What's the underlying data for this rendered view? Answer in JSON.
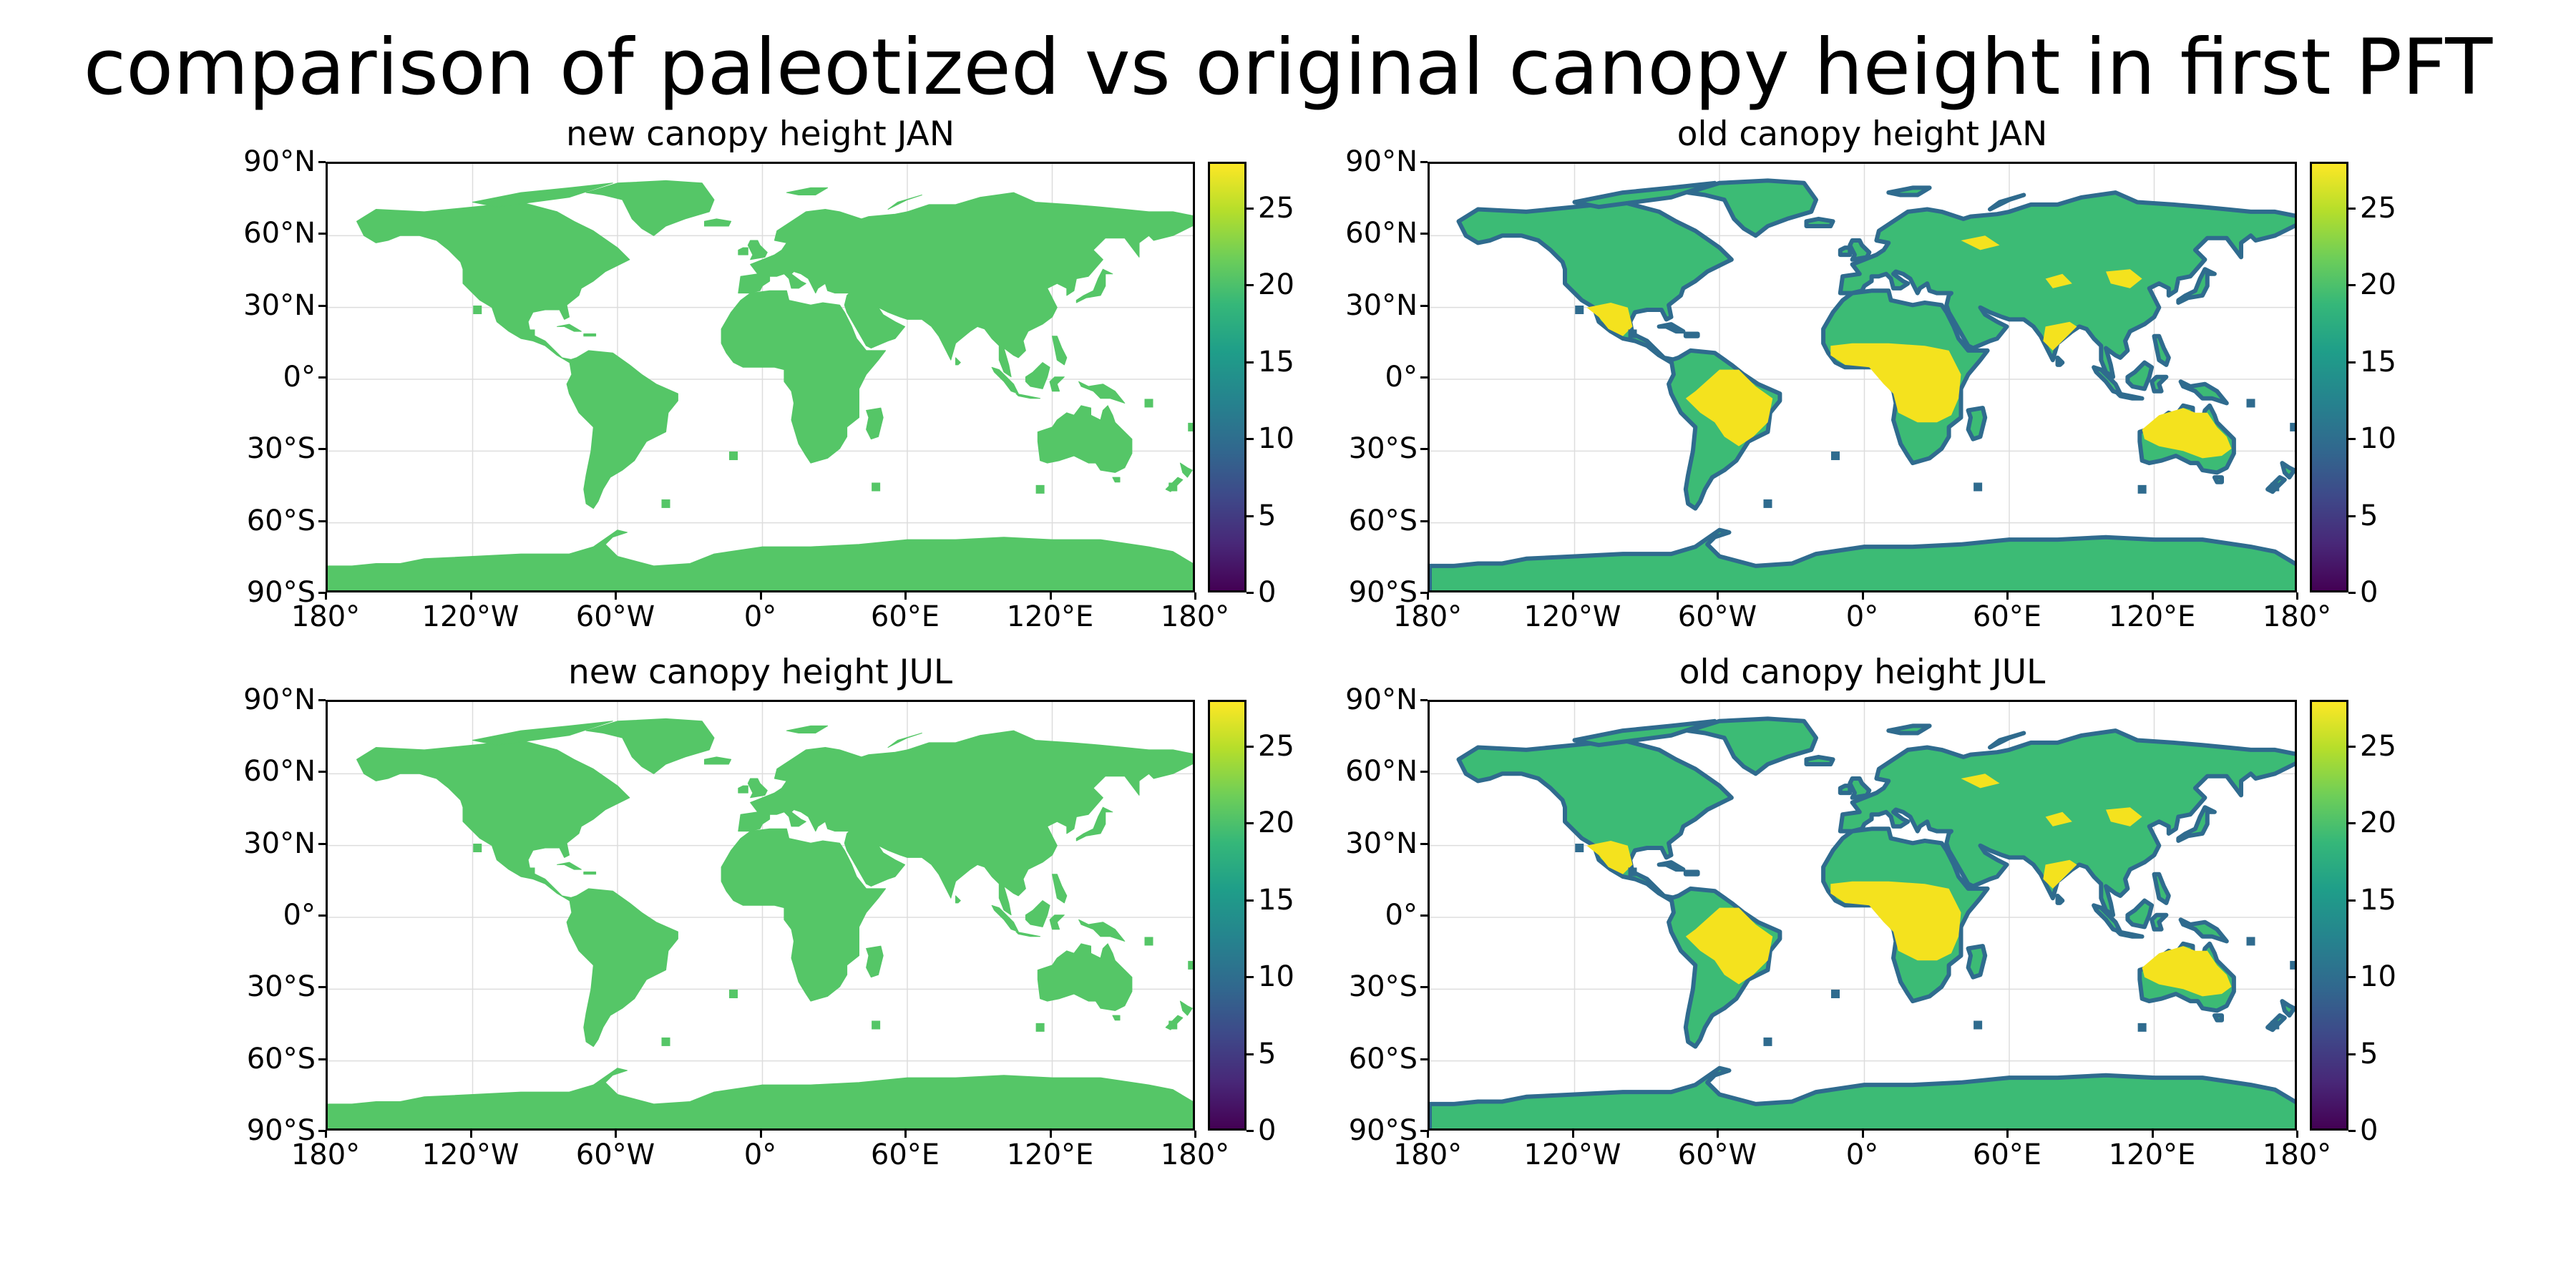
{
  "figure": {
    "suptitle": "comparison of paleotized vs original canopy height in first PFT"
  },
  "panels": [
    {
      "id": "new_jan",
      "title": "new canopy height JAN",
      "variant": "new"
    },
    {
      "id": "old_jan",
      "title": "old canopy height JAN",
      "variant": "old"
    },
    {
      "id": "new_jul",
      "title": "new canopy height JUL",
      "variant": "new"
    },
    {
      "id": "old_jul",
      "title": "old canopy height JUL",
      "variant": "old"
    }
  ],
  "axes": {
    "lat_ticks": [
      "90°N",
      "60°N",
      "30°N",
      "0°",
      "30°S",
      "60°S",
      "90°S"
    ],
    "lon_ticks": [
      "180°",
      "120°W",
      "60°W",
      "0°",
      "60°E",
      "120°E",
      "180°"
    ]
  },
  "colorbar": {
    "colormap": "viridis",
    "range": [
      0,
      28
    ],
    "ticks": [
      "0",
      "5",
      "10",
      "15",
      "20",
      "25"
    ]
  },
  "colors": {
    "uniform_land": "#55c667",
    "temperate_forest": "#3cbb75",
    "tropical_forest": "#f4e21e",
    "coastal_edge": "#2f6b8e",
    "grid": "#dddddd"
  },
  "chart_data": {
    "type": "heatmap",
    "variable": "canopy height",
    "x_range": [
      -180,
      180
    ],
    "y_range": [
      -90,
      90
    ],
    "color_range": [
      0,
      28
    ],
    "panels": [
      {
        "name": "new canopy height JAN",
        "land_value": 21
      },
      {
        "name": "old canopy height JAN",
        "typical_value": 18,
        "tropical_value": 28
      },
      {
        "name": "new canopy height JUL",
        "land_value": 21
      },
      {
        "name": "old canopy height JUL",
        "typical_value": 18,
        "tropical_value": 28
      }
    ]
  }
}
